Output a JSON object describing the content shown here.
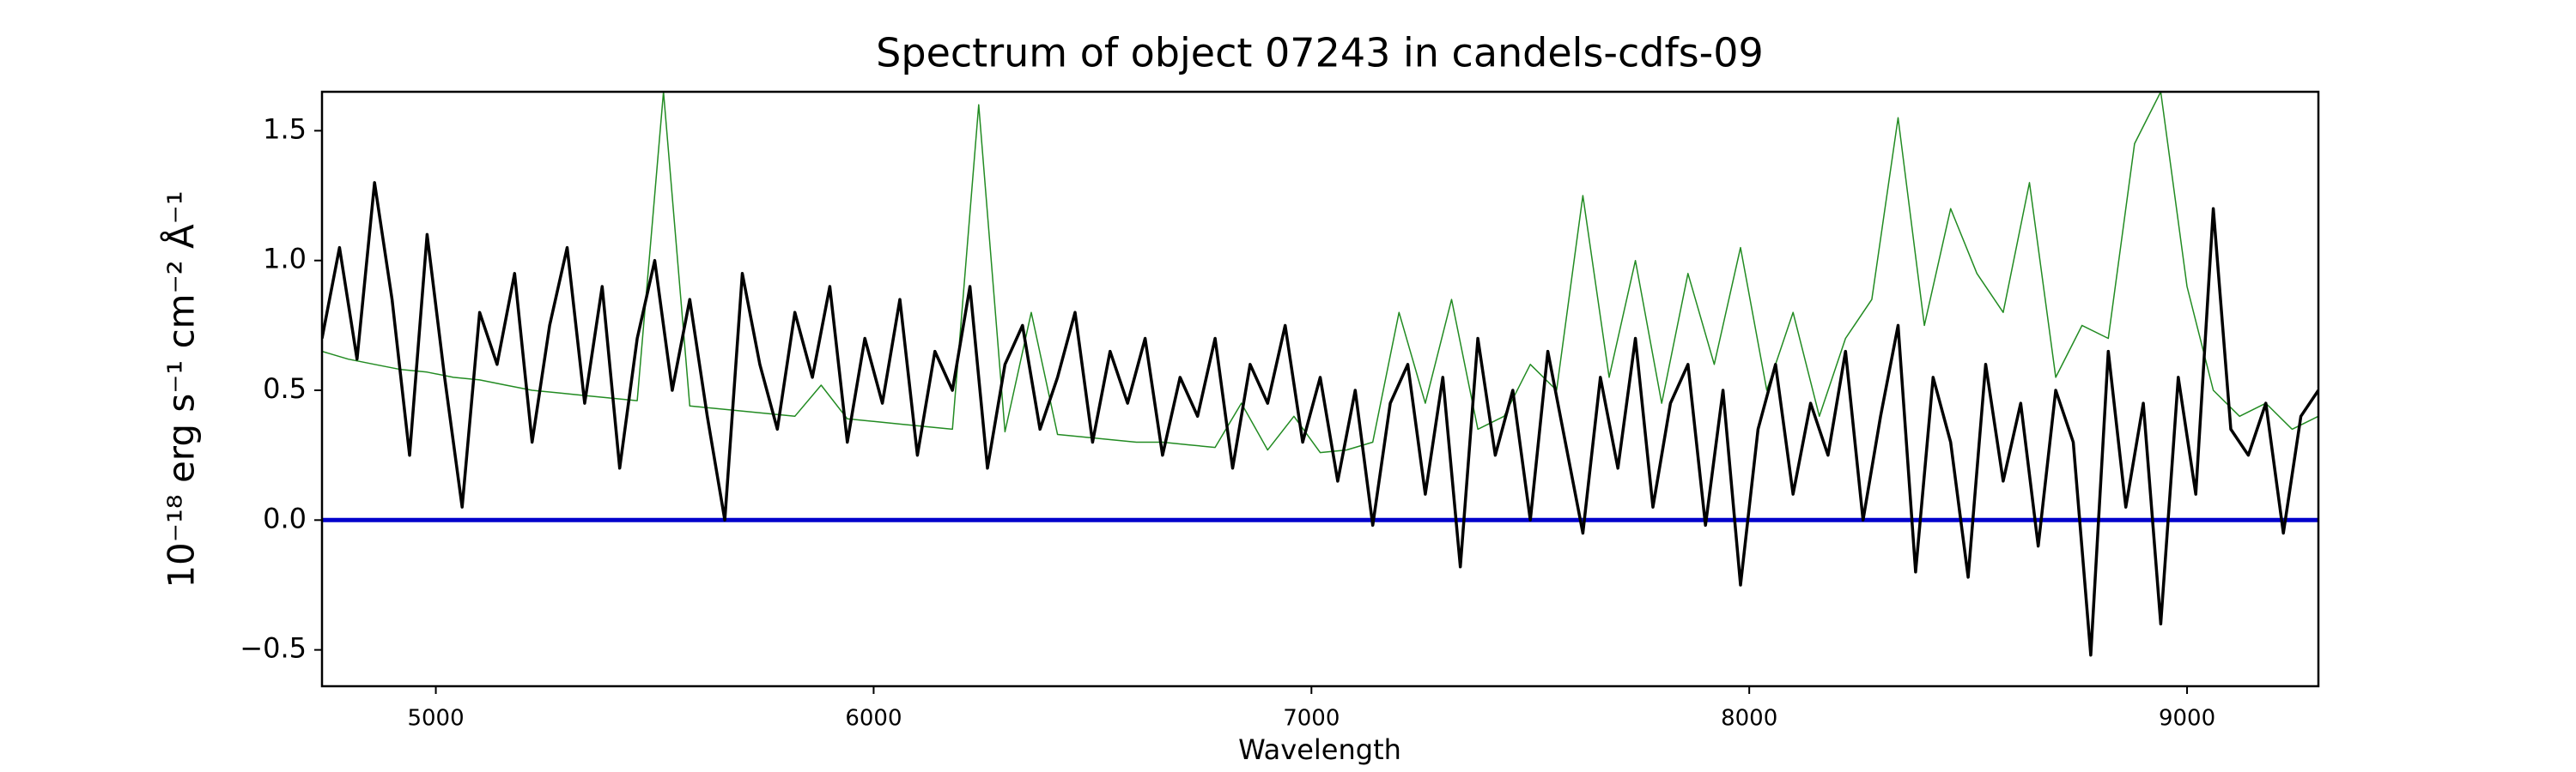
{
  "chart_data": {
    "type": "line",
    "title": "Spectrum of object 07243 in candels-cdfs-09",
    "xlabel": "Wavelength",
    "ylabel": "10⁻¹⁸ erg s⁻¹ cm⁻² Å⁻¹",
    "xlim": [
      4740,
      9300
    ],
    "ylim": [
      -0.64,
      1.65
    ],
    "xticks": [
      5000,
      6000,
      7000,
      8000,
      9000
    ],
    "yticks": [
      {
        "value": -0.5,
        "label": "−0.5"
      },
      {
        "value": 0,
        "label": "0.0"
      },
      0.5,
      {
        "value": 1,
        "label": "1.0"
      },
      1.5
    ],
    "series": [
      {
        "color": "#228b22",
        "width": 1.5,
        "x": [
          4740,
          4800,
          4860,
          4920,
          4980,
          5040,
          5100,
          5160,
          5220,
          5280,
          5340,
          5400,
          5460,
          5520,
          5580,
          5640,
          5700,
          5760,
          5820,
          5880,
          5940,
          6000,
          6060,
          6120,
          6180,
          6240,
          6300,
          6360,
          6420,
          6480,
          6540,
          6600,
          6660,
          6720,
          6780,
          6840,
          6900,
          6960,
          7020,
          7080,
          7140,
          7200,
          7260,
          7320,
          7380,
          7440,
          7500,
          7560,
          7620,
          7680,
          7740,
          7800,
          7860,
          7920,
          7980,
          8040,
          8100,
          8160,
          8220,
          8280,
          8340,
          8400,
          8460,
          8520,
          8580,
          8640,
          8700,
          8760,
          8820,
          8880,
          8940,
          9000,
          9060,
          9120,
          9180,
          9240,
          9300
        ],
        "values": [
          0.65,
          0.62,
          0.6,
          0.58,
          0.57,
          0.55,
          0.54,
          0.52,
          0.5,
          0.49,
          0.48,
          0.47,
          0.46,
          1.65,
          0.44,
          0.43,
          0.42,
          0.41,
          0.4,
          0.52,
          0.39,
          0.38,
          0.37,
          0.36,
          0.35,
          1.6,
          0.34,
          0.8,
          0.33,
          0.32,
          0.31,
          0.3,
          0.3,
          0.29,
          0.28,
          0.45,
          0.27,
          0.4,
          0.26,
          0.27,
          0.3,
          0.8,
          0.45,
          0.85,
          0.35,
          0.4,
          0.6,
          0.5,
          1.25,
          0.55,
          1.0,
          0.45,
          0.95,
          0.6,
          1.05,
          0.5,
          0.8,
          0.4,
          0.7,
          0.85,
          1.55,
          0.75,
          1.2,
          0.95,
          0.8,
          1.3,
          0.55,
          0.75,
          0.7,
          1.45,
          1.65,
          0.9,
          0.5,
          0.4,
          0.45,
          0.35,
          0.4
        ]
      },
      {
        "color": "#0000cc",
        "width": 5,
        "x": [
          4740,
          9300
        ],
        "values": [
          0,
          0
        ]
      },
      {
        "color": "#000000",
        "width": 3.5,
        "x": [
          4740,
          4780,
          4820,
          4860,
          4900,
          4940,
          4980,
          5020,
          5060,
          5100,
          5140,
          5180,
          5220,
          5260,
          5300,
          5340,
          5380,
          5420,
          5460,
          5500,
          5540,
          5580,
          5620,
          5660,
          5700,
          5740,
          5780,
          5820,
          5860,
          5900,
          5940,
          5980,
          6020,
          6060,
          6100,
          6140,
          6180,
          6220,
          6260,
          6300,
          6340,
          6380,
          6420,
          6460,
          6500,
          6540,
          6580,
          6620,
          6660,
          6700,
          6740,
          6780,
          6820,
          6860,
          6900,
          6940,
          6980,
          7020,
          7060,
          7100,
          7140,
          7180,
          7220,
          7260,
          7300,
          7340,
          7380,
          7420,
          7460,
          7500,
          7540,
          7580,
          7620,
          7660,
          7700,
          7740,
          7780,
          7820,
          7860,
          7900,
          7940,
          7980,
          8020,
          8060,
          8100,
          8140,
          8180,
          8220,
          8260,
          8300,
          8340,
          8380,
          8420,
          8460,
          8500,
          8540,
          8580,
          8620,
          8660,
          8700,
          8740,
          8780,
          8820,
          8860,
          8900,
          8940,
          8980,
          9020,
          9060,
          9100,
          9140,
          9180,
          9220,
          9260,
          9300
        ],
        "values": [
          0.7,
          1.05,
          0.62,
          1.3,
          0.85,
          0.25,
          1.1,
          0.55,
          0.05,
          0.8,
          0.6,
          0.95,
          0.3,
          0.75,
          1.05,
          0.45,
          0.9,
          0.2,
          0.7,
          1.0,
          0.5,
          0.85,
          0.4,
          0.0,
          0.95,
          0.6,
          0.35,
          0.8,
          0.55,
          0.9,
          0.3,
          0.7,
          0.45,
          0.85,
          0.25,
          0.65,
          0.5,
          0.9,
          0.2,
          0.6,
          0.75,
          0.35,
          0.55,
          0.8,
          0.3,
          0.65,
          0.45,
          0.7,
          0.25,
          0.55,
          0.4,
          0.7,
          0.2,
          0.6,
          0.45,
          0.75,
          0.3,
          0.55,
          0.15,
          0.5,
          -0.02,
          0.45,
          0.6,
          0.1,
          0.55,
          -0.18,
          0.7,
          0.25,
          0.5,
          0.0,
          0.65,
          0.3,
          -0.05,
          0.55,
          0.2,
          0.7,
          0.05,
          0.45,
          0.6,
          -0.02,
          0.5,
          -0.25,
          0.35,
          0.6,
          0.1,
          0.45,
          0.25,
          0.65,
          0.0,
          0.4,
          0.75,
          -0.2,
          0.55,
          0.3,
          -0.22,
          0.6,
          0.15,
          0.45,
          -0.1,
          0.5,
          0.3,
          -0.52,
          0.65,
          0.05,
          0.45,
          -0.4,
          0.55,
          0.1,
          1.2,
          0.35,
          0.25,
          0.45,
          -0.05,
          0.4,
          0.5
        ]
      }
    ]
  }
}
